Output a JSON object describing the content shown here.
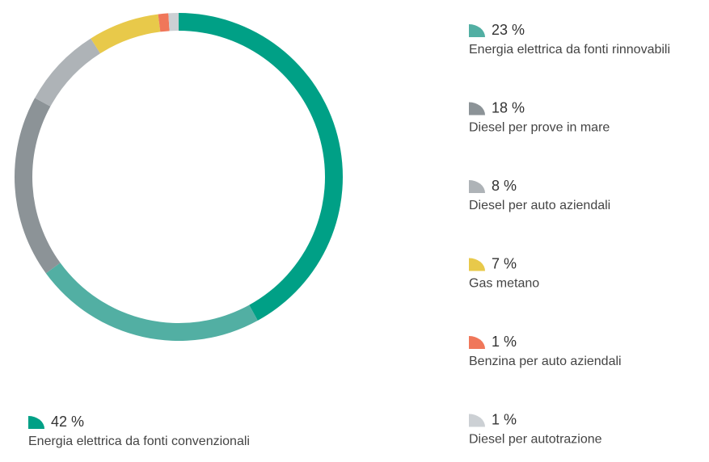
{
  "chart_data": {
    "type": "donut",
    "categories": [
      "Energia elettrica da fonti convenzionali",
      "Energia elettrica da fonti rinnovabili",
      "Diesel per prove in mare",
      "Diesel per auto aziendali",
      "Gas metano",
      "Benzina per auto aziendali",
      "Diesel per autotrazione"
    ],
    "values": [
      42,
      23,
      18,
      8,
      7,
      1,
      1
    ],
    "value_labels": [
      "42 %",
      "23 %",
      "18 %",
      "8 %",
      "7 %",
      "1 %",
      "1 %"
    ],
    "colors": [
      "#00a086",
      "#52afa3",
      "#8c9397",
      "#aeb3b7",
      "#e8c94a",
      "#f0775a",
      "#ccd0d4"
    ]
  }
}
